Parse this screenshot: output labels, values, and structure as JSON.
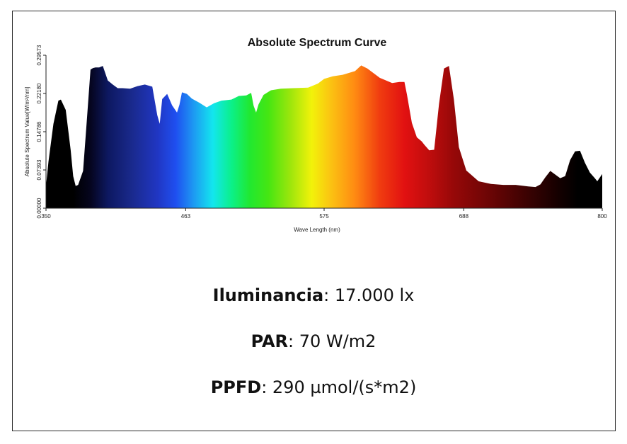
{
  "chart_data": {
    "type": "area",
    "title": "Absolute Spectrum Curve",
    "xlabel": "Wave Length (nm)",
    "ylabel": "Absolute Spectrum Value[W/m²/nm]",
    "xlim": [
      350,
      800
    ],
    "ylim": [
      0,
      0.29573
    ],
    "x_ticks": [
      "350",
      "463",
      "575",
      "688",
      "800"
    ],
    "y_ticks": [
      "0.00000",
      "0.07393",
      "0.14786",
      "0.22180",
      "0.29573"
    ],
    "grid": false,
    "legend": "none",
    "fill": "visible-spectrum gradient by wavelength",
    "series": [
      {
        "x": [
          350,
          352,
          356,
          360,
          362,
          366,
          370,
          372,
          374,
          376,
          380,
          383,
          386,
          388,
          390,
          393,
          396,
          400,
          404,
          408,
          412,
          418,
          424,
          430,
          436,
          440,
          442,
          444,
          448,
          452,
          456,
          458,
          460,
          464,
          468,
          474,
          480,
          486,
          492,
          500,
          506,
          512,
          516,
          518,
          520,
          522,
          526,
          532,
          540,
          550,
          562,
          570,
          575,
          582,
          590,
          600,
          605,
          610,
          620,
          630,
          636,
          640,
          642,
          646,
          650,
          654,
          656,
          660,
          664,
          668,
          672,
          676,
          680,
          684,
          690,
          700,
          710,
          720,
          730,
          740,
          746,
          750,
          754,
          758,
          762,
          766,
          770,
          774,
          778,
          782,
          786,
          790,
          794,
          796,
          800
        ],
        "y": [
          0.043,
          0.09,
          0.163,
          0.208,
          0.21,
          0.19,
          0.112,
          0.062,
          0.043,
          0.045,
          0.072,
          0.168,
          0.268,
          0.271,
          0.272,
          0.272,
          0.275,
          0.247,
          0.239,
          0.232,
          0.232,
          0.231,
          0.236,
          0.239,
          0.235,
          0.18,
          0.163,
          0.211,
          0.221,
          0.199,
          0.185,
          0.2,
          0.224,
          0.221,
          0.212,
          0.204,
          0.195,
          0.203,
          0.208,
          0.21,
          0.217,
          0.218,
          0.223,
          0.198,
          0.185,
          0.201,
          0.219,
          0.228,
          0.231,
          0.232,
          0.233,
          0.241,
          0.25,
          0.255,
          0.258,
          0.265,
          0.276,
          0.27,
          0.252,
          0.242,
          0.244,
          0.244,
          0.22,
          0.165,
          0.137,
          0.129,
          0.123,
          0.112,
          0.113,
          0.202,
          0.27,
          0.275,
          0.21,
          0.118,
          0.073,
          0.052,
          0.047,
          0.045,
          0.045,
          0.042,
          0.041,
          0.046,
          0.06,
          0.072,
          0.065,
          0.058,
          0.062,
          0.093,
          0.11,
          0.111,
          0.088,
          0.069,
          0.058,
          0.052,
          0.066
        ]
      }
    ]
  },
  "metrics": [
    {
      "label": "Iluminancia",
      "value": ": 17.000 lx"
    },
    {
      "label": "PAR",
      "value": ": 70 W/m2"
    },
    {
      "label": "PPFD",
      "value": ": 290 µmol/(s*m2)"
    }
  ]
}
